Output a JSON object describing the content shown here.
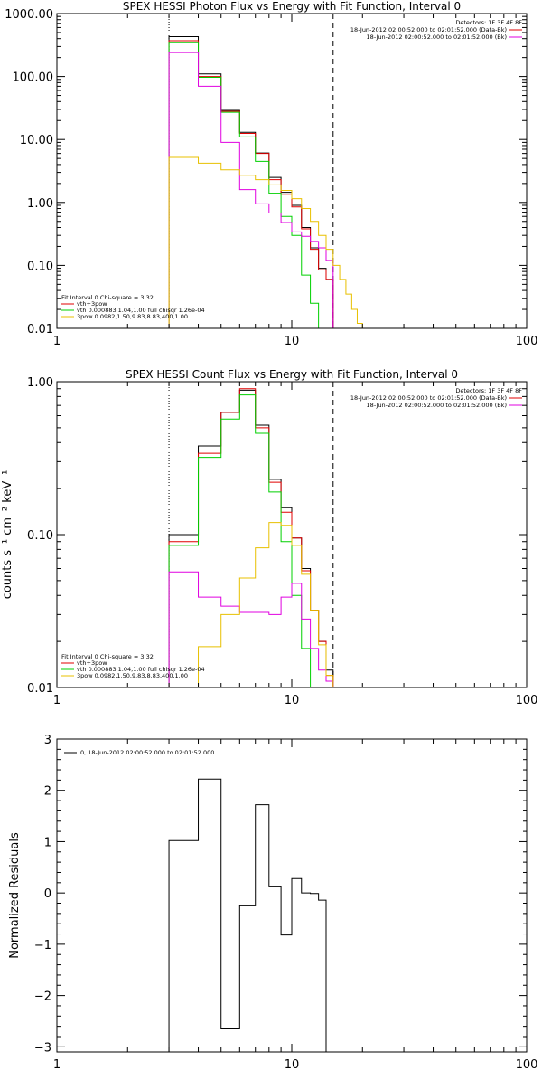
{
  "chart_data": [
    {
      "type": "line",
      "title": "SPEX HESSI Photon Flux vs Energy with Fit Function, Interval 0",
      "ylabel": "",
      "xlim": [
        1,
        100
      ],
      "ylim": [
        0.01,
        1000
      ],
      "xscale": "log",
      "yscale": "log",
      "x_ticks": [
        "1",
        "10",
        "100"
      ],
      "y_ticks": [
        "0.01",
        "0.10",
        "1.00",
        "10.00",
        "100.00",
        "1000.00"
      ],
      "vlines": [
        3,
        15
      ],
      "info": {
        "detectors": "Detectors: 1F 3F 4F 8F",
        "line1": "18-Jun-2012 02:00:52.000 to 02:01:52.000 (Data-Bk)",
        "line2": "18-Jun-2012 02:00:52.000 to 02:01:52.000 (Bk)"
      },
      "fit_legend": {
        "header": "Fit Interval 0   Chi-square = 3.32",
        "entries": [
          {
            "label": "vth+3pow",
            "color": "#e00000"
          },
          {
            "label": "vth 0.000883,1.04,1.00   full chisqr 1.26e-04",
            "color": "#00d000"
          },
          {
            "label": "3pow 0.0982,1.50,9.83,8.83,400,1.00",
            "color": "#e8c000"
          }
        ]
      },
      "edges": [
        3,
        4,
        5,
        6,
        7,
        8,
        9,
        10,
        11,
        12,
        13,
        14,
        15
      ],
      "series": [
        {
          "name": "",
          "color": "#000000",
          "values": [
            430,
            110,
            29,
            13,
            6.1,
            2.5,
            1.45,
            0.9,
            0.4,
            0.19,
            0.09,
            0.06
          ]
        },
        {
          "name": "",
          "color": "#e00000",
          "values": [
            370,
            100,
            28,
            12.5,
            6.0,
            2.3,
            1.35,
            0.85,
            0.38,
            0.18,
            0.085,
            0.06
          ]
        },
        {
          "name": "",
          "color": "#00d000",
          "values": [
            350,
            97,
            27,
            11,
            4.5,
            1.4,
            0.6,
            0.3,
            0.07,
            0.025,
            0.009
          ]
        },
        {
          "name": "",
          "color": "#e000e0",
          "values": [
            240,
            70,
            9.0,
            1.6,
            0.95,
            0.68,
            0.48,
            0.34,
            0.29,
            0.24,
            0.19,
            0.12
          ]
        },
        {
          "name": "",
          "color": "#e8c000",
          "edges": [
            3,
            4,
            5,
            6,
            7,
            8,
            9,
            10,
            11,
            12,
            13,
            14,
            15,
            16,
            17,
            18,
            19,
            20
          ],
          "values": [
            5.2,
            4.2,
            3.3,
            2.7,
            2.3,
            1.9,
            1.55,
            1.15,
            0.8,
            0.5,
            0.3,
            0.18,
            0.1,
            0.06,
            0.035,
            0.02,
            0.012
          ]
        }
      ]
    },
    {
      "type": "line",
      "title": "SPEX HESSI Count Flux vs Energy with Fit Function, Interval 0",
      "ylabel": "counts s⁻¹ cm⁻² keV⁻¹",
      "xlim": [
        1,
        100
      ],
      "ylim": [
        0.01,
        1
      ],
      "xscale": "log",
      "yscale": "log",
      "x_ticks": [
        "1",
        "10",
        "100"
      ],
      "y_ticks": [
        "0.01",
        "0.10",
        "1.00"
      ],
      "vlines": [
        3,
        15
      ],
      "info": {
        "detectors": "Detectors: 1F 3F 4F 8F",
        "line1": "18-Jun-2012 02:00:52.000 to 02:01:52.000 (Data-Bk)",
        "line2": "18-Jun-2012 02:00:52.000 to 02:01:52.000 (Bk)"
      },
      "fit_legend": {
        "header": "Fit Interval 0   Chi-square = 3.32",
        "entries": [
          {
            "label": "vth+3pow",
            "color": "#e00000"
          },
          {
            "label": "vth 0.000883,1.04,1.00   full chisqr 1.26e-04",
            "color": "#00d000"
          },
          {
            "label": "3pow 0.0982,1.50,9.83,8.83,400,1.00",
            "color": "#e8c000"
          }
        ]
      },
      "edges": [
        3,
        4,
        5,
        6,
        7,
        8,
        9,
        10,
        11,
        12,
        13,
        14,
        15
      ],
      "series": [
        {
          "name": "",
          "color": "#000000",
          "values": [
            0.1,
            0.38,
            0.63,
            0.88,
            0.52,
            0.23,
            0.15,
            0.095,
            0.06,
            0.032,
            0.02,
            0.013
          ]
        },
        {
          "name": "",
          "color": "#e00000",
          "values": [
            0.09,
            0.34,
            0.63,
            0.9,
            0.5,
            0.22,
            0.14,
            0.095,
            0.058,
            0.032,
            0.02,
            0.012
          ]
        },
        {
          "name": "",
          "color": "#00d000",
          "values": [
            0.085,
            0.32,
            0.57,
            0.82,
            0.46,
            0.19,
            0.09,
            0.04,
            0.018,
            0.009
          ]
        },
        {
          "name": "",
          "color": "#e000e0",
          "values": [
            0.057,
            0.039,
            0.034,
            0.031,
            0.031,
            0.03,
            0.039,
            0.048,
            0.028,
            0.018,
            0.013,
            0.011
          ]
        },
        {
          "name": "",
          "color": "#e8c000",
          "values": [
            0.0075,
            0.0185,
            0.03,
            0.052,
            0.082,
            0.12,
            0.115,
            0.085,
            0.055,
            0.032,
            0.019,
            0.012
          ]
        }
      ]
    },
    {
      "type": "line",
      "title": "",
      "ylabel": "Normalized Residuals",
      "xlim": [
        1,
        100
      ],
      "ylim": [
        -3.1,
        3
      ],
      "xscale": "log",
      "yscale": "linear",
      "x_ticks": [
        "1",
        "10",
        "100"
      ],
      "y_ticks": [
        "3",
        "2",
        "1",
        "0",
        "−1",
        "−2",
        "−3"
      ],
      "legend": {
        "label": "0, 18-Jun-2012 02:00:52.000 to 02:01:52.000",
        "color": "#000000"
      },
      "edges": [
        3,
        4,
        5,
        6,
        7,
        8,
        9,
        10,
        11,
        12,
        13,
        14,
        15
      ],
      "series": [
        {
          "name": "0, 18-Jun-2012 02:00:52.000 to 02:01:52.000",
          "color": "#000000",
          "values": [
            1.02,
            2.22,
            -2.65,
            -0.25,
            1.72,
            0.12,
            -0.82,
            0.28,
            0.0,
            -0.01,
            -0.14
          ]
        }
      ]
    }
  ]
}
